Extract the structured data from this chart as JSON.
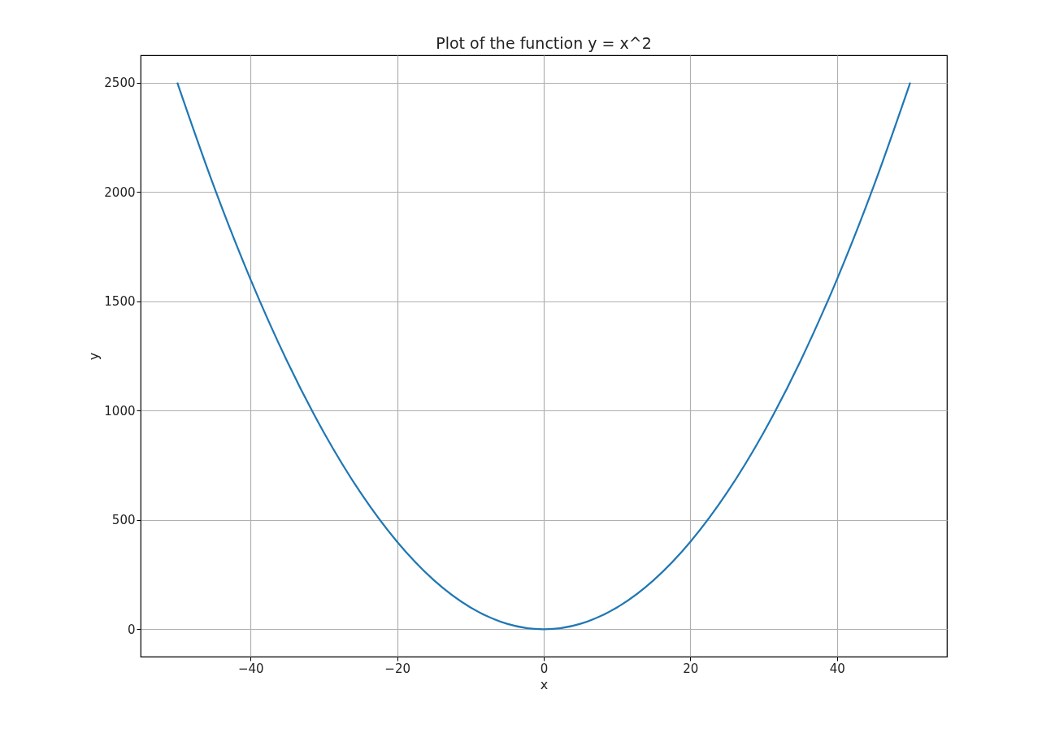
{
  "chart_data": {
    "type": "line",
    "title": "Plot of the function y = x^2",
    "xlabel": "x",
    "ylabel": "y",
    "x": [
      -50,
      -45,
      -40,
      -35,
      -30,
      -25,
      -20,
      -15,
      -10,
      -5,
      0,
      5,
      10,
      15,
      20,
      25,
      30,
      35,
      40,
      45,
      50
    ],
    "series": [
      {
        "color": "#1f77b4",
        "values": [
          2500,
          2025,
          1600,
          1225,
          900,
          625,
          400,
          225,
          100,
          25,
          0,
          25,
          100,
          225,
          400,
          625,
          900,
          1225,
          1600,
          2025,
          2500
        ]
      }
    ],
    "xlim": [
      -55,
      55
    ],
    "xticks": [
      {
        "value": -40,
        "label": "−40"
      },
      {
        "value": -20,
        "label": "−20"
      },
      0,
      20,
      40
    ],
    "ylim": [
      -125,
      2625
    ],
    "yticks": [
      0,
      500,
      1000,
      1500,
      2000,
      2500
    ],
    "grid": true,
    "marker": "none",
    "line_style": "solid"
  }
}
